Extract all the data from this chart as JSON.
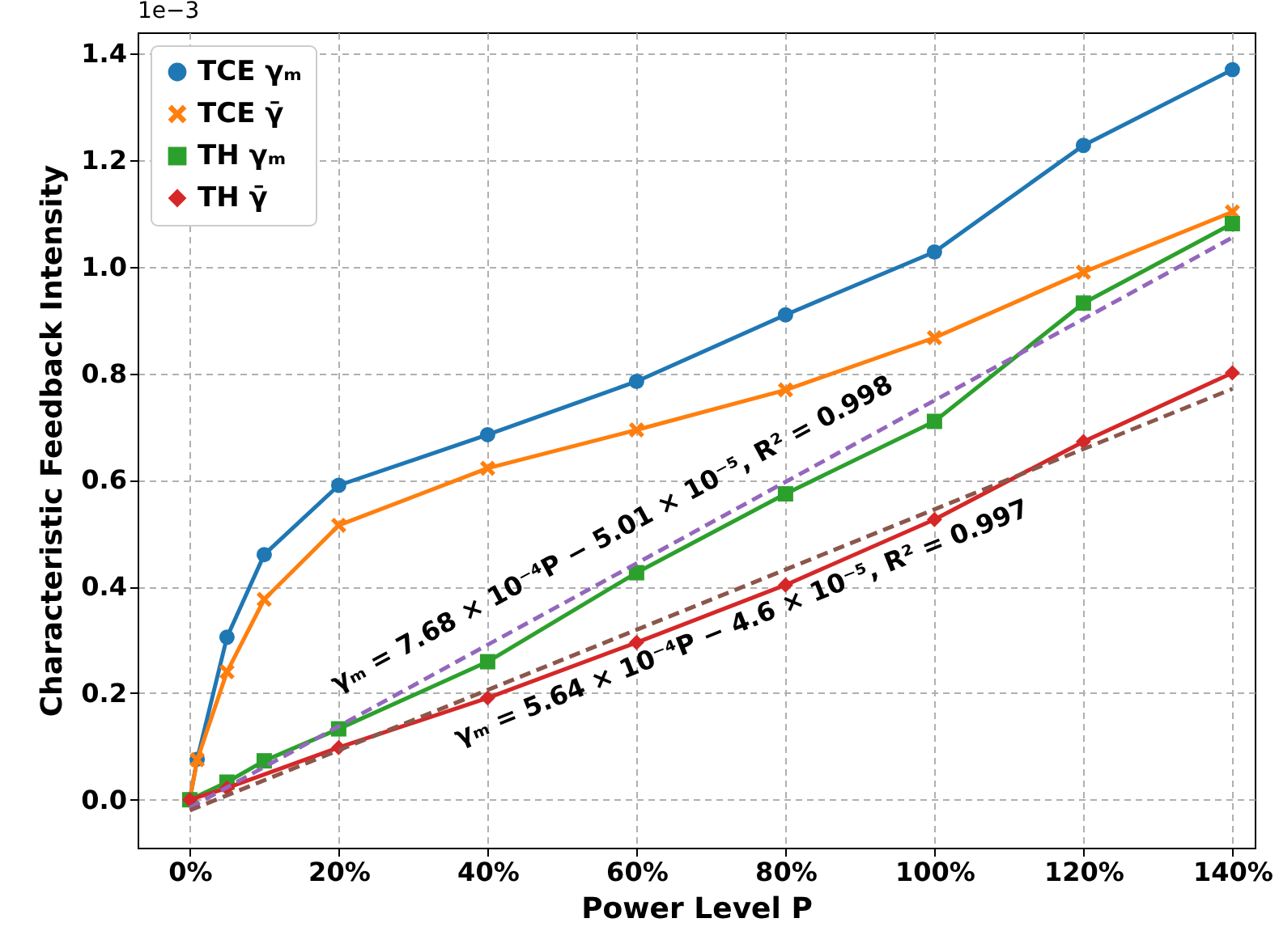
{
  "chart_data": {
    "type": "line",
    "xlabel": "Power Level P",
    "ylabel": "Characteristic Feedback Intensity",
    "xlim": [
      -7,
      143
    ],
    "ylim": [
      -0.09,
      1.44
    ],
    "xticks": [
      {
        "value": 0,
        "label": "0%"
      },
      {
        "value": 20,
        "label": "20%"
      },
      {
        "value": 40,
        "label": "40%"
      },
      {
        "value": 60,
        "label": "60%"
      },
      {
        "value": 80,
        "label": "80%"
      },
      {
        "value": 100,
        "label": "100%"
      },
      {
        "value": 120,
        "label": "120%"
      },
      {
        "value": 140,
        "label": "140%"
      }
    ],
    "yticks": [
      {
        "value": 0,
        "label": "0.0"
      },
      0.2,
      0.4,
      0.6,
      0.8,
      {
        "value": 1,
        "label": "1.0"
      },
      1.2,
      1.4
    ],
    "grid": true,
    "legend": "top left",
    "series": [
      {
        "name": "TCE γₘ",
        "color": "#1f77b4",
        "marker": "circle",
        "x": [
          0,
          1,
          5,
          10,
          20,
          40,
          60,
          80,
          100,
          120,
          140
        ],
        "values": [
          0,
          0.076,
          0.305,
          0.46,
          0.59,
          0.685,
          0.785,
          0.91,
          1.028,
          1.228,
          1.37
        ]
      },
      {
        "name": "TCE γ̄",
        "color": "#ff7f0e",
        "marker": "cross",
        "x": [
          0,
          1,
          5,
          10,
          20,
          40,
          60,
          80,
          100,
          120,
          140
        ],
        "values": [
          0,
          0.075,
          0.24,
          0.376,
          0.515,
          0.622,
          0.694,
          0.769,
          0.867,
          0.99,
          1.103
        ]
      },
      {
        "name": "TH γₘ",
        "color": "#2ca02c",
        "marker": "square",
        "x": [
          0,
          5,
          10,
          20,
          40,
          60,
          80,
          100,
          120,
          140
        ],
        "values": [
          0,
          0.033,
          0.073,
          0.133,
          0.259,
          0.426,
          0.574,
          0.71,
          0.932,
          1.081
        ]
      },
      {
        "name": "TH γ̄",
        "color": "#d62728",
        "marker": "diamond",
        "x": [
          0,
          5,
          20,
          40,
          60,
          80,
          100,
          120,
          140
        ],
        "values": [
          0,
          0.022,
          0.098,
          0.191,
          0.295,
          0.403,
          0.526,
          0.672,
          0.801
        ]
      },
      {
        "color": "#9467bd",
        "marker": "none",
        "line_style": "dashed",
        "x": [
          0,
          140
        ],
        "values": [
          -0.015,
          1.055
        ]
      },
      {
        "color": "#8c564b",
        "marker": "none",
        "line_style": "dashed",
        "x": [
          0,
          140
        ],
        "values": [
          -0.02,
          0.771
        ]
      }
    ],
    "annotations": [
      "1e−3",
      "γₘ = 7.68 × 10⁻⁴P − 5.01 × 10⁻⁵, R² = 0.998",
      "γₘ = 5.64 × 10⁻⁴P − 4.6 × 10⁻⁵, R² = 0.997"
    ]
  }
}
